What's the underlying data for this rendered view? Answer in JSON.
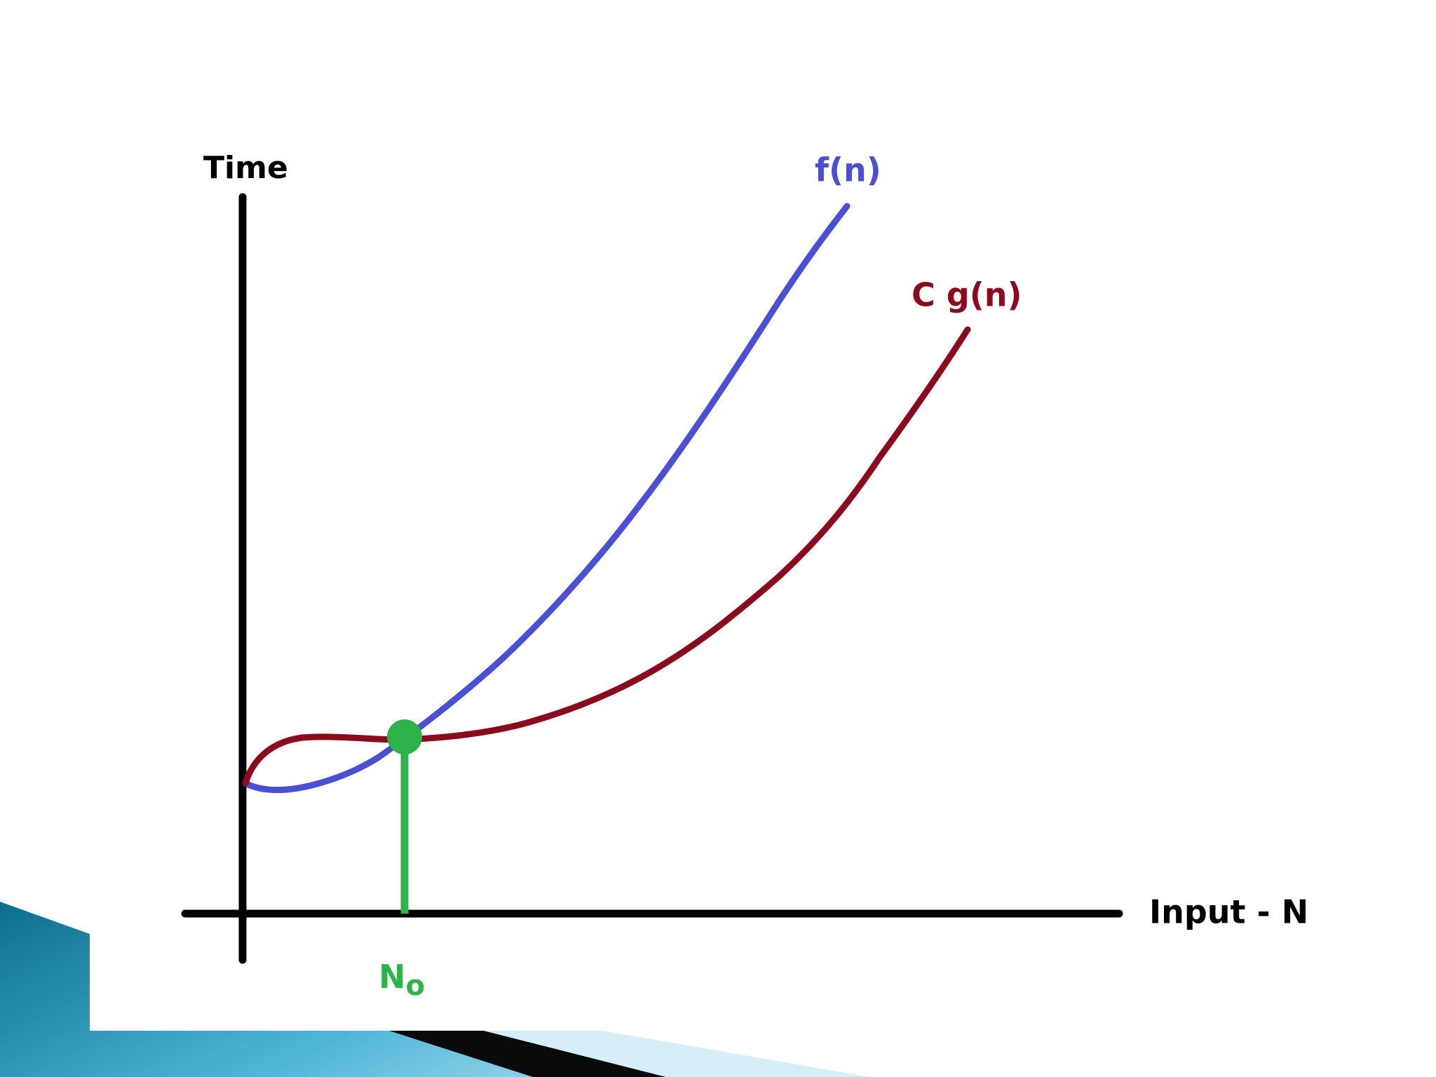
{
  "y_axis": {
    "label": "Time"
  },
  "x_axis": {
    "label": "Input - N"
  },
  "curves": [
    {
      "label": "f(n)"
    },
    {
      "label": "C g(n)"
    }
  ],
  "threshold": {
    "label": "N",
    "subscript": "o"
  }
}
